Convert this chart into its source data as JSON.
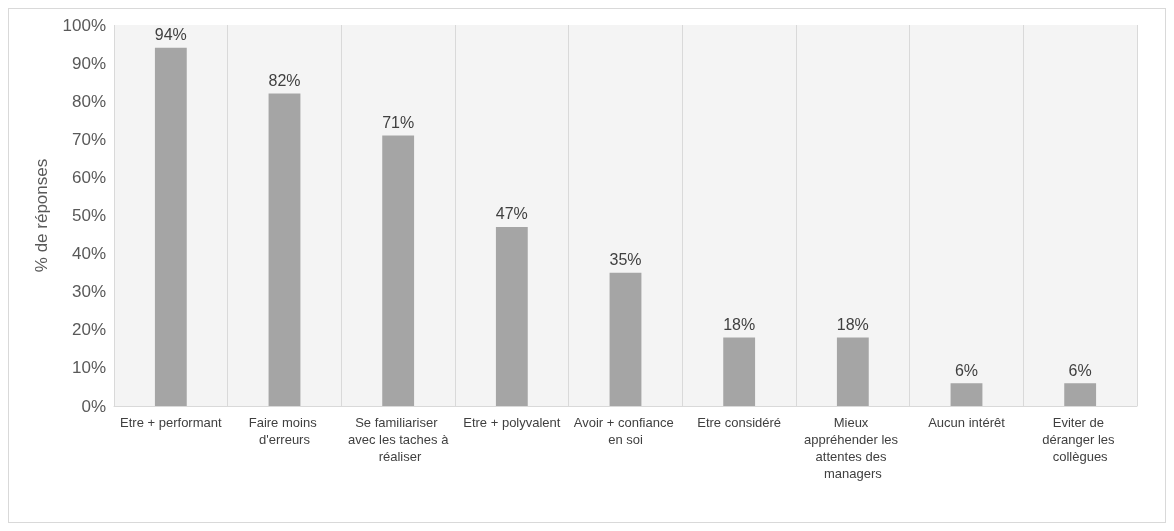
{
  "chart_data": {
    "type": "bar",
    "ylabel": "% de réponses",
    "categories": [
      "Etre + performant",
      "Faire moins d'erreurs",
      "Se familiariser avec les taches à réaliser",
      "Etre + polyvalent",
      "Avoir + confiance en soi",
      "Etre considéré",
      "Mieux appréhender les attentes des managers",
      "Aucun intérêt",
      "Eviter de déranger les collègues"
    ],
    "values": [
      94,
      82,
      71,
      47,
      35,
      18,
      18,
      6,
      6
    ],
    "value_labels": [
      "94%",
      "82%",
      "71%",
      "47%",
      "35%",
      "18%",
      "18%",
      "6%",
      "6%"
    ],
    "color": "#a5a5a5",
    "ylim": [
      0,
      100
    ],
    "yticks": [
      {
        "value": 0,
        "label": "0%"
      },
      {
        "value": 10,
        "label": "10%"
      },
      {
        "value": 20,
        "label": "20%"
      },
      {
        "value": 30,
        "label": "30%"
      },
      {
        "value": 40,
        "label": "40%"
      },
      {
        "value": 50,
        "label": "50%"
      },
      {
        "value": 60,
        "label": "60%"
      },
      {
        "value": 70,
        "label": "70%"
      },
      {
        "value": 80,
        "label": "80%"
      },
      {
        "value": 90,
        "label": "90%"
      },
      {
        "value": 100,
        "label": "100%"
      }
    ],
    "grid": "x"
  }
}
